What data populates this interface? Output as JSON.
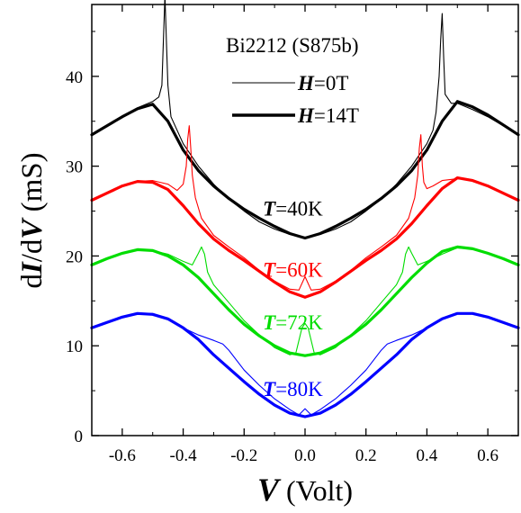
{
  "chart_data": {
    "type": "line",
    "title": "",
    "sample_label": "Bi2212 (S875b)",
    "xlabel": {
      "var": "V",
      "unit": " (Volt)"
    },
    "ylabel": {
      "pre": "d",
      "num": "I",
      "mid": "/d",
      "den": "V",
      "unit": " (mS)"
    },
    "xlim": [
      -0.7,
      0.7
    ],
    "ylim": [
      0,
      48
    ],
    "x_ticks": [
      -0.6,
      -0.4,
      -0.2,
      0.0,
      0.2,
      0.4,
      0.6
    ],
    "x_tick_labels": [
      "-0.6",
      "-0.4",
      "-0.2",
      "0.0",
      "0.2",
      "0.4",
      "0.6"
    ],
    "y_ticks": [
      0,
      10,
      20,
      30,
      40
    ],
    "y_tick_labels": [
      "0",
      "10",
      "20",
      "30",
      "40"
    ],
    "legend": {
      "position": "top-center",
      "entries": [
        {
          "var": "H",
          "value": "=0T",
          "line": "thin"
        },
        {
          "var": "H",
          "value": "=14T",
          "line": "thick"
        }
      ]
    },
    "annotations": [
      {
        "var": "T",
        "value": "=40K",
        "color": "#000000",
        "x": -0.04,
        "y": 24.5
      },
      {
        "var": "T",
        "value": "=60K",
        "color": "#ff0000",
        "x": -0.04,
        "y": 17.7
      },
      {
        "var": "T",
        "value": "=72K",
        "color": "#00dd00",
        "x": -0.04,
        "y": 11.8
      },
      {
        "var": "T",
        "value": "=80K",
        "color": "#0000ff",
        "x": -0.04,
        "y": 4.4
      }
    ],
    "series": [
      {
        "temperature": "40K",
        "field": "0T",
        "color": "#000000",
        "line": "thin",
        "x": [
          -0.7,
          -0.65,
          -0.6,
          -0.55,
          -0.5,
          -0.48,
          -0.47,
          -0.465,
          -0.46,
          -0.455,
          -0.45,
          -0.44,
          -0.42,
          -0.4,
          -0.35,
          -0.3,
          -0.25,
          -0.2,
          -0.15,
          -0.1,
          -0.05,
          0.0,
          0.05,
          0.1,
          0.15,
          0.2,
          0.25,
          0.3,
          0.35,
          0.4,
          0.42,
          0.43,
          0.44,
          0.445,
          0.45,
          0.455,
          0.46,
          0.48,
          0.5,
          0.55,
          0.6,
          0.65,
          0.7
        ],
        "y": [
          33.5,
          34.5,
          35.5,
          36.5,
          37.2,
          37.7,
          39.0,
          44.0,
          49.0,
          44.0,
          39.0,
          35.5,
          34.0,
          32.5,
          30.0,
          28.0,
          26.3,
          25.0,
          23.8,
          23.0,
          22.4,
          22.0,
          22.4,
          23.0,
          23.8,
          25.0,
          26.3,
          28.0,
          30.0,
          32.5,
          34.0,
          36.0,
          40.0,
          44.0,
          47.0,
          42.0,
          38.0,
          37.0,
          37.0,
          36.3,
          35.5,
          34.5,
          33.5
        ]
      },
      {
        "temperature": "40K",
        "field": "14T",
        "color": "#000000",
        "line": "thick",
        "x": [
          -0.7,
          -0.65,
          -0.6,
          -0.55,
          -0.5,
          -0.45,
          -0.4,
          -0.35,
          -0.3,
          -0.25,
          -0.2,
          -0.15,
          -0.1,
          -0.05,
          0.0,
          0.05,
          0.1,
          0.15,
          0.2,
          0.25,
          0.3,
          0.35,
          0.4,
          0.45,
          0.5,
          0.55,
          0.6,
          0.65,
          0.7
        ],
        "y": [
          33.5,
          34.5,
          35.5,
          36.4,
          36.9,
          35.0,
          31.8,
          29.5,
          27.8,
          26.4,
          25.2,
          24.2,
          23.3,
          22.5,
          22.0,
          22.5,
          23.3,
          24.2,
          25.2,
          26.4,
          27.8,
          29.5,
          31.8,
          35.0,
          37.2,
          36.6,
          35.7,
          34.6,
          33.5
        ]
      },
      {
        "temperature": "60K",
        "field": "0T",
        "color": "#ff0000",
        "line": "thin",
        "x": [
          -0.7,
          -0.65,
          -0.6,
          -0.55,
          -0.5,
          -0.45,
          -0.42,
          -0.4,
          -0.39,
          -0.385,
          -0.38,
          -0.375,
          -0.37,
          -0.36,
          -0.34,
          -0.3,
          -0.25,
          -0.2,
          -0.15,
          -0.1,
          -0.05,
          -0.02,
          0.0,
          0.02,
          0.05,
          0.1,
          0.15,
          0.2,
          0.25,
          0.3,
          0.34,
          0.36,
          0.37,
          0.375,
          0.38,
          0.385,
          0.39,
          0.4,
          0.42,
          0.45,
          0.5,
          0.55,
          0.6,
          0.65,
          0.7
        ],
        "y": [
          26.2,
          27.0,
          27.8,
          28.3,
          28.4,
          28.0,
          27.3,
          28.0,
          30.0,
          33.0,
          34.5,
          32.0,
          29.0,
          26.5,
          24.2,
          22.3,
          21.0,
          19.8,
          18.4,
          17.2,
          16.3,
          16.2,
          17.7,
          16.2,
          16.3,
          17.2,
          18.4,
          19.8,
          21.0,
          22.3,
          24.2,
          26.5,
          29.0,
          32.0,
          33.5,
          30.0,
          28.2,
          27.5,
          27.8,
          28.4,
          28.6,
          28.5,
          27.8,
          27.0,
          26.2
        ]
      },
      {
        "temperature": "60K",
        "field": "14T",
        "color": "#ff0000",
        "line": "thick",
        "x": [
          -0.7,
          -0.65,
          -0.6,
          -0.55,
          -0.5,
          -0.45,
          -0.4,
          -0.35,
          -0.3,
          -0.25,
          -0.2,
          -0.15,
          -0.1,
          -0.05,
          0.0,
          0.05,
          0.1,
          0.15,
          0.2,
          0.25,
          0.3,
          0.35,
          0.4,
          0.45,
          0.5,
          0.55,
          0.6,
          0.65,
          0.7
        ],
        "y": [
          26.2,
          27.0,
          27.8,
          28.3,
          28.2,
          27.4,
          25.6,
          23.6,
          21.9,
          20.6,
          19.5,
          18.3,
          17.1,
          16.0,
          15.4,
          16.0,
          17.1,
          18.3,
          19.5,
          20.6,
          21.9,
          23.6,
          25.6,
          27.5,
          28.7,
          28.4,
          27.8,
          27.0,
          26.2
        ]
      },
      {
        "temperature": "72K",
        "field": "0T",
        "color": "#00dd00",
        "line": "thin",
        "x": [
          -0.7,
          -0.65,
          -0.6,
          -0.55,
          -0.5,
          -0.45,
          -0.4,
          -0.37,
          -0.35,
          -0.34,
          -0.33,
          -0.32,
          -0.3,
          -0.25,
          -0.2,
          -0.15,
          -0.1,
          -0.05,
          -0.03,
          -0.01,
          0.0,
          0.01,
          0.03,
          0.05,
          0.1,
          0.15,
          0.2,
          0.25,
          0.3,
          0.32,
          0.33,
          0.34,
          0.35,
          0.37,
          0.4,
          0.45,
          0.5,
          0.55,
          0.6,
          0.65,
          0.7
        ],
        "y": [
          19.0,
          19.7,
          20.3,
          20.7,
          20.6,
          20.2,
          19.4,
          19.0,
          20.3,
          21.0,
          20.2,
          18.2,
          16.8,
          14.8,
          12.8,
          11.2,
          9.8,
          9.0,
          9.2,
          12.0,
          12.5,
          12.0,
          9.2,
          9.0,
          9.8,
          11.2,
          12.8,
          14.8,
          16.8,
          18.2,
          20.2,
          21.0,
          20.3,
          19.0,
          19.4,
          20.2,
          20.9,
          20.8,
          20.3,
          19.7,
          19.0
        ]
      },
      {
        "temperature": "72K",
        "field": "14T",
        "color": "#00dd00",
        "line": "thick",
        "x": [
          -0.7,
          -0.65,
          -0.6,
          -0.55,
          -0.5,
          -0.45,
          -0.4,
          -0.35,
          -0.3,
          -0.25,
          -0.2,
          -0.15,
          -0.1,
          -0.05,
          0.0,
          0.05,
          0.1,
          0.15,
          0.2,
          0.25,
          0.3,
          0.35,
          0.4,
          0.45,
          0.5,
          0.55,
          0.6,
          0.65,
          0.7
        ],
        "y": [
          19.0,
          19.7,
          20.3,
          20.7,
          20.6,
          20.0,
          19.0,
          17.6,
          15.8,
          14.0,
          12.4,
          11.1,
          10.0,
          9.2,
          8.9,
          9.2,
          10.0,
          11.1,
          12.4,
          14.0,
          15.8,
          17.6,
          19.2,
          20.5,
          21.0,
          20.8,
          20.3,
          19.7,
          19.0
        ]
      },
      {
        "temperature": "80K",
        "field": "0T",
        "color": "#0000ff",
        "line": "thin",
        "x": [
          -0.7,
          -0.65,
          -0.6,
          -0.55,
          -0.5,
          -0.45,
          -0.4,
          -0.35,
          -0.3,
          -0.27,
          -0.25,
          -0.2,
          -0.15,
          -0.1,
          -0.05,
          -0.02,
          0.0,
          0.02,
          0.05,
          0.1,
          0.15,
          0.2,
          0.25,
          0.27,
          0.3,
          0.35,
          0.4,
          0.45,
          0.5,
          0.55,
          0.6,
          0.65,
          0.7
        ],
        "y": [
          12.0,
          12.6,
          13.2,
          13.6,
          13.6,
          13.0,
          12.0,
          11.2,
          10.6,
          10.2,
          9.5,
          7.3,
          5.6,
          4.1,
          2.9,
          2.3,
          3.0,
          2.3,
          2.9,
          4.1,
          5.6,
          7.3,
          9.5,
          10.2,
          10.6,
          11.2,
          12.0,
          13.0,
          13.6,
          13.6,
          13.2,
          12.6,
          12.0
        ]
      },
      {
        "temperature": "80K",
        "field": "14T",
        "color": "#0000ff",
        "line": "thick",
        "x": [
          -0.7,
          -0.65,
          -0.6,
          -0.55,
          -0.5,
          -0.45,
          -0.4,
          -0.35,
          -0.3,
          -0.25,
          -0.2,
          -0.15,
          -0.1,
          -0.05,
          0.0,
          0.05,
          0.1,
          0.15,
          0.2,
          0.25,
          0.3,
          0.35,
          0.4,
          0.45,
          0.5,
          0.55,
          0.6,
          0.65,
          0.7
        ],
        "y": [
          12.0,
          12.6,
          13.2,
          13.6,
          13.5,
          13.0,
          12.0,
          10.7,
          9.0,
          7.5,
          6.0,
          4.6,
          3.4,
          2.5,
          2.1,
          2.5,
          3.4,
          4.6,
          6.0,
          7.5,
          9.0,
          10.7,
          12.0,
          13.0,
          13.6,
          13.6,
          13.2,
          12.6,
          12.0
        ]
      }
    ]
  }
}
